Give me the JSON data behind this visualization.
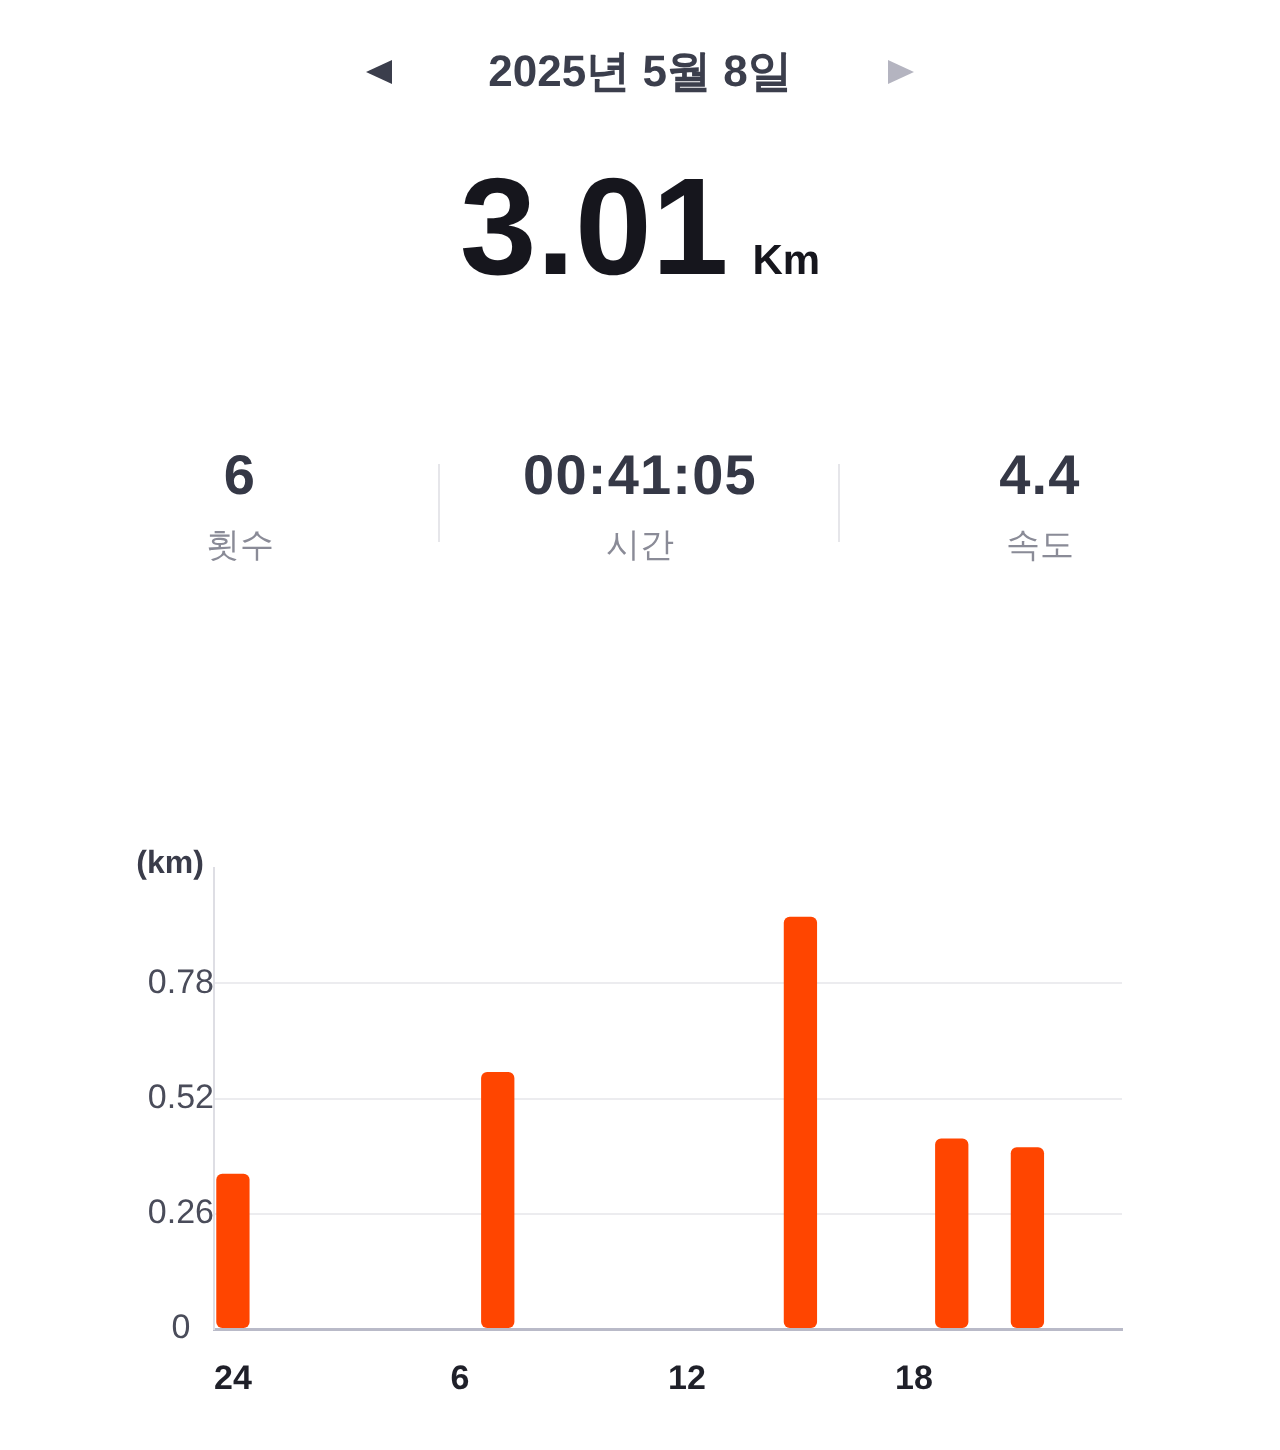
{
  "chart_data": {
    "type": "bar",
    "title": "2025년 5월 8일",
    "annotations": [
      "3.01",
      "Km",
      "6",
      "횟수",
      "00:41:05",
      "시간",
      "4.4",
      "속도"
    ],
    "ylabel": "(km)",
    "categories": [
      "24",
      null,
      null,
      null,
      null,
      null,
      "6",
      null,
      null,
      null,
      null,
      null,
      "12",
      null,
      null,
      null,
      null,
      null,
      "18",
      null,
      null,
      null,
      null,
      null
    ],
    "values": [
      0.35,
      null,
      null,
      null,
      null,
      null,
      null,
      0.58,
      null,
      null,
      null,
      null,
      null,
      null,
      null,
      0.93,
      null,
      null,
      null,
      0.43,
      null,
      0.41,
      null,
      null
    ],
    "color": "#ff4500",
    "ylim": [
      0,
      1.04
    ],
    "yticks": [
      0,
      0.26,
      0.52,
      0.78
    ],
    "grid": "y"
  }
}
